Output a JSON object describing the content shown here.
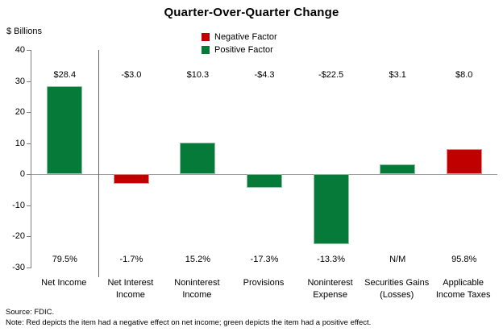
{
  "chart_data": {
    "type": "bar",
    "title": "Quarter-Over-Quarter Change",
    "y_units_label": "$ Billions",
    "ylabel": "",
    "xlabel": "",
    "ylim": [
      -30,
      40
    ],
    "yticks": [
      40,
      30,
      20,
      10,
      0,
      -10,
      -20,
      -30
    ],
    "grid": false,
    "legend_position": "top-center",
    "legend": [
      {
        "label": "Negative Factor",
        "color": "#C00000"
      },
      {
        "label": "Positive Factor",
        "color": "#067A38"
      }
    ],
    "categories": [
      "Net Income",
      "Net Interest Income",
      "Noninterest Income",
      "Provisions",
      "Noninterest Expense",
      "Securities Gains (Losses)",
      "Applicable Income Taxes"
    ],
    "values": [
      28.4,
      -3.0,
      10.3,
      -4.3,
      -22.5,
      3.1,
      8.0
    ],
    "value_labels": [
      "$28.4",
      "-$3.0",
      "$10.3",
      "-$4.3",
      "-$22.5",
      "$3.1",
      "$8.0"
    ],
    "pct_labels": [
      "79.5%",
      "-1.7%",
      "15.2%",
      "-17.3%",
      "-13.3%",
      "N/M",
      "95.8%"
    ],
    "bar_factors": [
      "positive",
      "negative",
      "positive",
      "positive",
      "positive",
      "positive",
      "negative"
    ],
    "bar_colors": [
      "#067A38",
      "#C00000",
      "#067A38",
      "#067A38",
      "#067A38",
      "#067A38",
      "#C00000"
    ],
    "separator_after_category_index": 0,
    "colors": {
      "positive": "#067A38",
      "negative": "#C00000",
      "axis": "#808080"
    }
  },
  "footer": {
    "source": "Source: FDIC.",
    "note": "Note: Red depicts the item had a negative effect on net income; green depicts the item had a positive effect."
  }
}
